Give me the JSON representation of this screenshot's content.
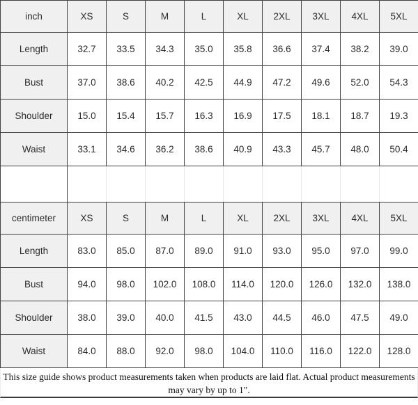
{
  "chart_data": [
    {
      "type": "table",
      "title": "inch",
      "columns": [
        "XS",
        "S",
        "M",
        "L",
        "XL",
        "2XL",
        "3XL",
        "4XL",
        "5XL"
      ],
      "rows": [
        {
          "label": "Length",
          "values": [
            "32.7",
            "33.5",
            "34.3",
            "35.0",
            "35.8",
            "36.6",
            "37.4",
            "38.2",
            "39.0"
          ]
        },
        {
          "label": "Bust",
          "values": [
            "37.0",
            "38.6",
            "40.2",
            "42.5",
            "44.9",
            "47.2",
            "49.6",
            "52.0",
            "54.3"
          ]
        },
        {
          "label": "Shoulder",
          "values": [
            "15.0",
            "15.4",
            "15.7",
            "16.3",
            "16.9",
            "17.5",
            "18.1",
            "18.7",
            "19.3"
          ]
        },
        {
          "label": "Waist",
          "values": [
            "33.1",
            "34.6",
            "36.2",
            "38.6",
            "40.9",
            "43.3",
            "45.7",
            "48.0",
            "50.4"
          ]
        }
      ]
    },
    {
      "type": "table",
      "title": "centimeter",
      "columns": [
        "XS",
        "S",
        "M",
        "L",
        "XL",
        "2XL",
        "3XL",
        "4XL",
        "5XL"
      ],
      "rows": [
        {
          "label": "Length",
          "values": [
            "83.0",
            "85.0",
            "87.0",
            "89.0",
            "91.0",
            "93.0",
            "95.0",
            "97.0",
            "99.0"
          ]
        },
        {
          "label": "Bust",
          "values": [
            "94.0",
            "98.0",
            "102.0",
            "108.0",
            "114.0",
            "120.0",
            "126.0",
            "132.0",
            "138.0"
          ]
        },
        {
          "label": "Shoulder",
          "values": [
            "38.0",
            "39.0",
            "40.0",
            "41.5",
            "43.0",
            "44.5",
            "46.0",
            "47.5",
            "49.0"
          ]
        },
        {
          "label": "Waist",
          "values": [
            "84.0",
            "88.0",
            "92.0",
            "98.0",
            "104.0",
            "110.0",
            "116.0",
            "122.0",
            "128.0"
          ]
        }
      ]
    }
  ],
  "footer": {
    "note": "This size guide shows product measurements taken when products are laid flat. Actual product measurements may vary by up to 1\"."
  },
  "colors": {
    "header_bg": "#f0f0f0",
    "grid_border": "#404040",
    "spacer_border": "#e4e4ef",
    "text": "#2b2b2b"
  }
}
